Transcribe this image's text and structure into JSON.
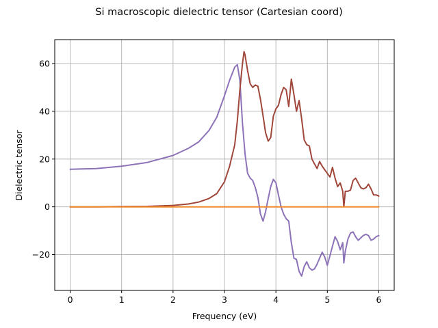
{
  "chart_data": {
    "type": "line",
    "title": "Si macroscopic dielectric tensor (Cartesian coord)",
    "xlabel": "Frequency (eV)",
    "ylabel": "Dielectric tensor",
    "xlim": [
      -0.3,
      6.3
    ],
    "ylim": [
      -35,
      70
    ],
    "xticks": [
      0,
      1,
      2,
      3,
      4,
      5,
      6
    ],
    "xtick_labels": [
      "0",
      "1",
      "2",
      "3",
      "4",
      "5",
      "6"
    ],
    "yticks": [
      -20,
      0,
      20,
      40,
      60
    ],
    "ytick_labels": [
      "−20",
      "0",
      "20",
      "40",
      "60"
    ],
    "grid": true,
    "legend": "none",
    "colors": {
      "real": "#8c72b8",
      "imag": "#a0463a",
      "offdiag": "#f08a2c",
      "grid": "#b0b0b0"
    },
    "series": [
      {
        "key": "real",
        "x": [
          0,
          0.5,
          1.0,
          1.5,
          2.0,
          2.3,
          2.5,
          2.7,
          2.85,
          3.0,
          3.1,
          3.2,
          3.25,
          3.3,
          3.35,
          3.4,
          3.45,
          3.5,
          3.55,
          3.6,
          3.65,
          3.7,
          3.75,
          3.8,
          3.85,
          3.9,
          3.95,
          4.0,
          4.05,
          4.1,
          4.15,
          4.2,
          4.25,
          4.3,
          4.35,
          4.4,
          4.45,
          4.5,
          4.55,
          4.6,
          4.65,
          4.7,
          4.75,
          4.8,
          4.85,
          4.9,
          4.95,
          5.0,
          5.05,
          5.1,
          5.15,
          5.2,
          5.25,
          5.3,
          5.32,
          5.35,
          5.4,
          5.45,
          5.5,
          5.55,
          5.6,
          5.65,
          5.7,
          5.75,
          5.8,
          5.85,
          5.9,
          5.95,
          6.0
        ],
        "y": [
          15.7,
          16.0,
          17.0,
          18.6,
          21.5,
          24.5,
          27.2,
          32.0,
          37.5,
          46.5,
          53.0,
          58.5,
          59.5,
          53.0,
          35.0,
          22.0,
          14.0,
          12.0,
          11.0,
          8.0,
          4.0,
          -3.0,
          -6.0,
          -2.0,
          3.5,
          8.5,
          11.5,
          10.0,
          5.0,
          0.0,
          -3.0,
          -5.0,
          -6.0,
          -15.0,
          -21.5,
          -22.0,
          -27.0,
          -29.0,
          -25.0,
          -23.0,
          -25.5,
          -26.5,
          -26.0,
          -24.0,
          -21.5,
          -19.0,
          -21.0,
          -24.5,
          -20.5,
          -16.5,
          -12.5,
          -14.5,
          -18.0,
          -15.0,
          -23.5,
          -18.5,
          -13.5,
          -11.0,
          -10.5,
          -12.5,
          -14.0,
          -13.0,
          -12.0,
          -11.5,
          -12.0,
          -14.0,
          -13.5,
          -12.5,
          -12.0
        ]
      },
      {
        "key": "imag",
        "x": [
          0,
          0.5,
          1.0,
          1.5,
          2.0,
          2.3,
          2.5,
          2.7,
          2.85,
          3.0,
          3.1,
          3.2,
          3.25,
          3.3,
          3.35,
          3.38,
          3.4,
          3.45,
          3.5,
          3.55,
          3.6,
          3.65,
          3.7,
          3.75,
          3.8,
          3.85,
          3.9,
          3.95,
          4.0,
          4.05,
          4.1,
          4.15,
          4.2,
          4.25,
          4.3,
          4.35,
          4.4,
          4.45,
          4.5,
          4.55,
          4.6,
          4.65,
          4.7,
          4.75,
          4.8,
          4.85,
          4.9,
          4.95,
          5.0,
          5.05,
          5.1,
          5.15,
          5.2,
          5.25,
          5.3,
          5.32,
          5.35,
          5.4,
          5.45,
          5.5,
          5.55,
          5.6,
          5.65,
          5.7,
          5.75,
          5.8,
          5.85,
          5.9,
          5.95,
          6.0
        ],
        "y": [
          0.0,
          0.0,
          0.1,
          0.2,
          0.6,
          1.2,
          2.0,
          3.5,
          5.5,
          10.5,
          17.0,
          26.0,
          36.0,
          49.0,
          60.0,
          65.0,
          63.5,
          57.0,
          51.5,
          50.0,
          51.0,
          50.5,
          45.0,
          38.0,
          31.0,
          27.5,
          29.0,
          38.0,
          41.0,
          42.5,
          47.0,
          50.0,
          49.0,
          42.0,
          53.5,
          47.0,
          40.0,
          44.5,
          37.0,
          28.0,
          26.0,
          25.5,
          20.0,
          18.0,
          16.0,
          19.0,
          17.0,
          15.5,
          14.0,
          12.5,
          16.5,
          12.0,
          8.5,
          10.0,
          6.5,
          0.0,
          6.5,
          6.5,
          7.0,
          11.0,
          12.0,
          10.0,
          8.0,
          7.5,
          8.0,
          9.5,
          7.5,
          5.0,
          5.0,
          4.5
        ]
      },
      {
        "key": "offdiag",
        "x": [
          0,
          1,
          2,
          3,
          4,
          5,
          6
        ],
        "y": [
          0,
          0,
          0,
          0,
          0,
          0,
          0
        ]
      }
    ]
  }
}
